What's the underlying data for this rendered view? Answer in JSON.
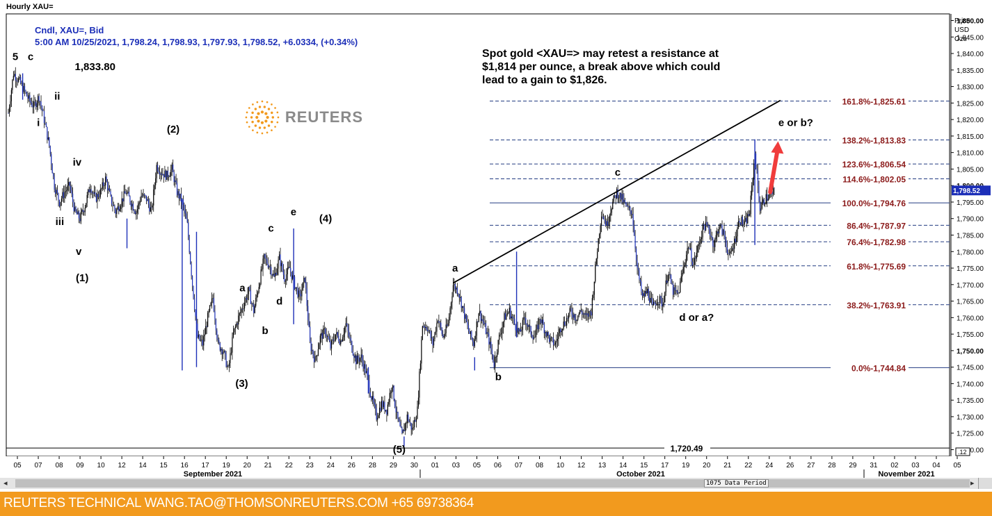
{
  "window": {
    "title": "Hourly XAU="
  },
  "info": {
    "line1": "Cndl, XAU=, Bid",
    "line2": "5:00 AM 10/25/2021, 1,798.24, 1,798.93, 1,797.93, 1,798.52, +6.0334, (+0.34%)"
  },
  "note": {
    "text": "Spot gold <XAU=> may retest a resistance at $1,814 per ounce, a break above which could lead to a gain to $1,826."
  },
  "logo": {
    "text": "REUTERS"
  },
  "footer": {
    "text": "REUTERS TECHNICAL  WANG.TAO@THOMSONREUTERS.COM  +65 69738364"
  },
  "scrollbar": {
    "period_label": "1075 Data Period",
    "left_arrow": "◂",
    "right_arrow": "▸"
  },
  "colors": {
    "candles": "#1c2fb8",
    "fib_label": "#8b1a1a",
    "trend": "#000000",
    "arrow": "#f03c3c",
    "footer": "#f29a1e",
    "info_text": "#1c2fb8"
  },
  "chart_data": {
    "type": "candlestick",
    "price_axis_label": [
      "Price",
      "USD",
      "Ozs"
    ],
    "ylim": [
      1718,
      1852
    ],
    "y_ticks": [
      1720,
      1725,
      1730,
      1735,
      1740,
      1745,
      1750,
      1755,
      1760,
      1765,
      1770,
      1775,
      1780,
      1785,
      1790,
      1795,
      1800,
      1805,
      1810,
      1815,
      1820,
      1825,
      1830,
      1835,
      1840,
      1845,
      1850
    ],
    "y_tick_labels": [
      "1,720.00",
      "1,725.00",
      "1,730.00",
      "1,735.00",
      "1,740.00",
      "1,745.00",
      "1,750.00",
      "1,755.00",
      "1,760.00",
      "1,765.00",
      "1,770.00",
      "1,775.00",
      "1,780.00",
      "1,785.00",
      "1,790.00",
      "1,795.00",
      "1,800.00",
      "1,805.00",
      "1,810.00",
      "1,815.00",
      "1,820.00",
      "1,825.00",
      "1,830.00",
      "1,835.00",
      "1,840.00",
      "1,845.00",
      "1,850.00"
    ],
    "last_price_label": "1,798.52",
    "last_price": 1798.52,
    "corner_label": ".12",
    "x_ticks": [
      "05",
      "07",
      "08",
      "09",
      "10",
      "12",
      "14",
      "15",
      "16",
      "17",
      "19",
      "20",
      "21",
      "22",
      "23",
      "24",
      "26",
      "28",
      "29",
      "30",
      "01",
      "03",
      "05",
      "06",
      "07",
      "08",
      "10",
      "12",
      "13",
      "14",
      "15",
      "17",
      "19",
      "20",
      "21",
      "22",
      "24",
      "26",
      "27",
      "28",
      "29",
      "31",
      "02",
      "03",
      "04",
      "05"
    ],
    "months": [
      "September 2021",
      "October 2021",
      "November 2021"
    ],
    "price_path": [
      [
        0,
        1822
      ],
      [
        0.5,
        1834
      ],
      [
        1,
        1832
      ],
      [
        1.5,
        1829
      ],
      [
        2,
        1826
      ],
      [
        2.5,
        1824
      ],
      [
        3,
        1827
      ],
      [
        3.5,
        1820
      ],
      [
        4,
        1812
      ],
      [
        4.5,
        1800
      ],
      [
        5,
        1795
      ],
      [
        5.5,
        1798
      ],
      [
        6,
        1800
      ],
      [
        6.5,
        1792
      ],
      [
        7,
        1790
      ],
      [
        7.5,
        1794
      ],
      [
        8,
        1800
      ],
      [
        8.5,
        1796
      ],
      [
        9,
        1798
      ],
      [
        9.5,
        1802
      ],
      [
        10,
        1796
      ],
      [
        10.5,
        1792
      ],
      [
        11,
        1795
      ],
      [
        11.5,
        1798
      ],
      [
        12,
        1795
      ],
      [
        12.5,
        1792
      ],
      [
        13,
        1797
      ],
      [
        13.5,
        1796
      ],
      [
        14,
        1792
      ],
      [
        14.5,
        1806
      ],
      [
        15,
        1804
      ],
      [
        15.5,
        1803
      ],
      [
        16,
        1805
      ],
      [
        16.5,
        1798
      ],
      [
        17,
        1795
      ],
      [
        17.5,
        1788
      ],
      [
        18,
        1770
      ],
      [
        18.5,
        1754
      ],
      [
        19,
        1752
      ],
      [
        19.5,
        1760
      ],
      [
        20,
        1766
      ],
      [
        20.5,
        1752
      ],
      [
        21,
        1750
      ],
      [
        21.5,
        1744
      ],
      [
        22,
        1755
      ],
      [
        22.5,
        1760
      ],
      [
        23,
        1764
      ],
      [
        23.5,
        1768
      ],
      [
        24,
        1762
      ],
      [
        24.5,
        1770
      ],
      [
        25,
        1778
      ],
      [
        25.5,
        1776
      ],
      [
        26,
        1772
      ],
      [
        26.5,
        1778
      ],
      [
        27,
        1772
      ],
      [
        27.5,
        1775
      ],
      [
        28,
        1770
      ],
      [
        28.5,
        1766
      ],
      [
        29,
        1772
      ],
      [
        29.5,
        1752
      ],
      [
        30,
        1747
      ],
      [
        30.5,
        1754
      ],
      [
        31,
        1756
      ],
      [
        31.5,
        1751
      ],
      [
        32,
        1755
      ],
      [
        32.5,
        1753
      ],
      [
        33,
        1758
      ],
      [
        33.5,
        1752
      ],
      [
        34,
        1747
      ],
      [
        34.5,
        1748
      ],
      [
        35,
        1743
      ],
      [
        35.5,
        1736
      ],
      [
        36,
        1730
      ],
      [
        36.5,
        1734
      ],
      [
        37,
        1732
      ],
      [
        37.5,
        1740
      ],
      [
        38,
        1730
      ],
      [
        38.5,
        1724
      ],
      [
        39,
        1730
      ],
      [
        39.5,
        1726
      ],
      [
        40,
        1732
      ],
      [
        40.5,
        1758
      ],
      [
        41,
        1757
      ],
      [
        41.5,
        1752
      ],
      [
        42,
        1760
      ],
      [
        42.5,
        1754
      ],
      [
        43,
        1758
      ],
      [
        43.5,
        1770
      ],
      [
        44,
        1768
      ],
      [
        44.5,
        1762
      ],
      [
        45,
        1756
      ],
      [
        45.5,
        1752
      ],
      [
        46,
        1762
      ],
      [
        46.5,
        1758
      ],
      [
        47,
        1753
      ],
      [
        47.5,
        1746
      ],
      [
        48,
        1754
      ],
      [
        48.5,
        1760
      ],
      [
        49,
        1762
      ],
      [
        49.5,
        1758
      ],
      [
        50,
        1755
      ],
      [
        50.5,
        1760
      ],
      [
        51,
        1756
      ],
      [
        51.5,
        1754
      ],
      [
        52,
        1760
      ],
      [
        52.5,
        1756
      ],
      [
        53,
        1753
      ],
      [
        53.5,
        1752
      ],
      [
        54,
        1757
      ],
      [
        54.5,
        1759
      ],
      [
        55,
        1762
      ],
      [
        55.5,
        1760
      ],
      [
        56,
        1762
      ],
      [
        56.5,
        1760
      ],
      [
        57,
        1762
      ],
      [
        57.5,
        1778
      ],
      [
        58,
        1792
      ],
      [
        58.5,
        1788
      ],
      [
        59,
        1794
      ],
      [
        59.5,
        1798
      ],
      [
        60,
        1796
      ],
      [
        60.5,
        1793
      ],
      [
        61,
        1792
      ],
      [
        61.5,
        1775
      ],
      [
        62,
        1766
      ],
      [
        62.5,
        1768
      ],
      [
        63,
        1763
      ],
      [
        63.5,
        1766
      ],
      [
        64,
        1764
      ],
      [
        64.5,
        1774
      ],
      [
        65,
        1768
      ],
      [
        65.5,
        1767
      ],
      [
        66,
        1775
      ],
      [
        66.5,
        1782
      ],
      [
        67,
        1776
      ],
      [
        67.5,
        1782
      ],
      [
        68,
        1788
      ],
      [
        68.5,
        1787
      ],
      [
        69,
        1782
      ],
      [
        69.5,
        1788
      ],
      [
        70,
        1785
      ],
      [
        70.5,
        1778
      ],
      [
        71,
        1783
      ],
      [
        71.5,
        1790
      ],
      [
        72,
        1788
      ],
      [
        72.5,
        1792
      ],
      [
        73,
        1810
      ],
      [
        73.5,
        1793
      ],
      [
        74,
        1796
      ],
      [
        74.5,
        1797
      ],
      [
        75,
        1798.5
      ]
    ],
    "spikes": [
      [
        1.4,
        1834,
        1826
      ],
      [
        17,
        1796,
        1744
      ],
      [
        18.4,
        1786,
        1745
      ],
      [
        27.9,
        1787,
        1758
      ],
      [
        45.6,
        1748,
        1744
      ],
      [
        49.7,
        1780,
        1754
      ],
      [
        73,
        1814,
        1782
      ],
      [
        38.7,
        1724,
        1721
      ],
      [
        35.2,
        1745,
        1737
      ],
      [
        11.6,
        1781,
        1790
      ]
    ],
    "fib_levels": [
      {
        "label": "161.8%-1,825.61",
        "value": 1825.61
      },
      {
        "label": "138.2%-1,813.83",
        "value": 1813.83
      },
      {
        "label": "123.6%-1,806.54",
        "value": 1806.54
      },
      {
        "label": "114.6%-1,802.05",
        "value": 1802.05
      },
      {
        "label": "100.0%-1,794.76",
        "value": 1794.76
      },
      {
        "label": "86.4%-1,787.97",
        "value": 1787.97
      },
      {
        "label": "76.4%-1,782.98",
        "value": 1782.98
      },
      {
        "label": "61.8%-1,775.69",
        "value": 1775.69
      },
      {
        "label": "38.2%-1,763.91",
        "value": 1763.91
      },
      {
        "label": "0.0%-1,744.84",
        "value": 1744.84
      }
    ],
    "support": {
      "label": "1,720.49",
      "value": 1720.49
    },
    "trendline": [
      [
        43.5,
        1770.5
      ],
      [
        75.5,
        1825.8
      ]
    ],
    "wave_labels": [
      {
        "text": "5",
        "x": 0.4,
        "y": 1838
      },
      {
        "text": "c",
        "x": 1.9,
        "y": 1838
      },
      {
        "text": "1,833.80",
        "x": 6.5,
        "y": 1835
      },
      {
        "text": "i",
        "x": 2.8,
        "y": 1818
      },
      {
        "text": "ii",
        "x": 4.5,
        "y": 1826
      },
      {
        "text": "iv",
        "x": 6.3,
        "y": 1806
      },
      {
        "text": "iii",
        "x": 4.6,
        "y": 1788
      },
      {
        "text": "v",
        "x": 6.6,
        "y": 1779
      },
      {
        "text": "(1)",
        "x": 6.6,
        "y": 1771
      },
      {
        "text": "(2)",
        "x": 15.5,
        "y": 1816
      },
      {
        "text": "a",
        "x": 22.6,
        "y": 1768
      },
      {
        "text": "b",
        "x": 24.8,
        "y": 1755
      },
      {
        "text": "c",
        "x": 25.4,
        "y": 1786
      },
      {
        "text": "d",
        "x": 26.2,
        "y": 1764
      },
      {
        "text": "e",
        "x": 27.6,
        "y": 1791
      },
      {
        "text": "(4)",
        "x": 30.4,
        "y": 1789
      },
      {
        "text": "(3)",
        "x": 22.2,
        "y": 1739
      },
      {
        "text": "(5)",
        "x": 37.6,
        "y": 1719
      },
      {
        "text": "a",
        "x": 43.4,
        "y": 1774
      },
      {
        "text": "b",
        "x": 47.6,
        "y": 1741
      },
      {
        "text": "c",
        "x": 59.3,
        "y": 1803
      },
      {
        "text": "d or a?",
        "x": 65.6,
        "y": 1759
      },
      {
        "text": "e or b?",
        "x": 75.3,
        "y": 1818
      }
    ],
    "breakout_arrow": [
      [
        74.5,
        1798
      ],
      [
        75.2,
        1813
      ]
    ]
  }
}
